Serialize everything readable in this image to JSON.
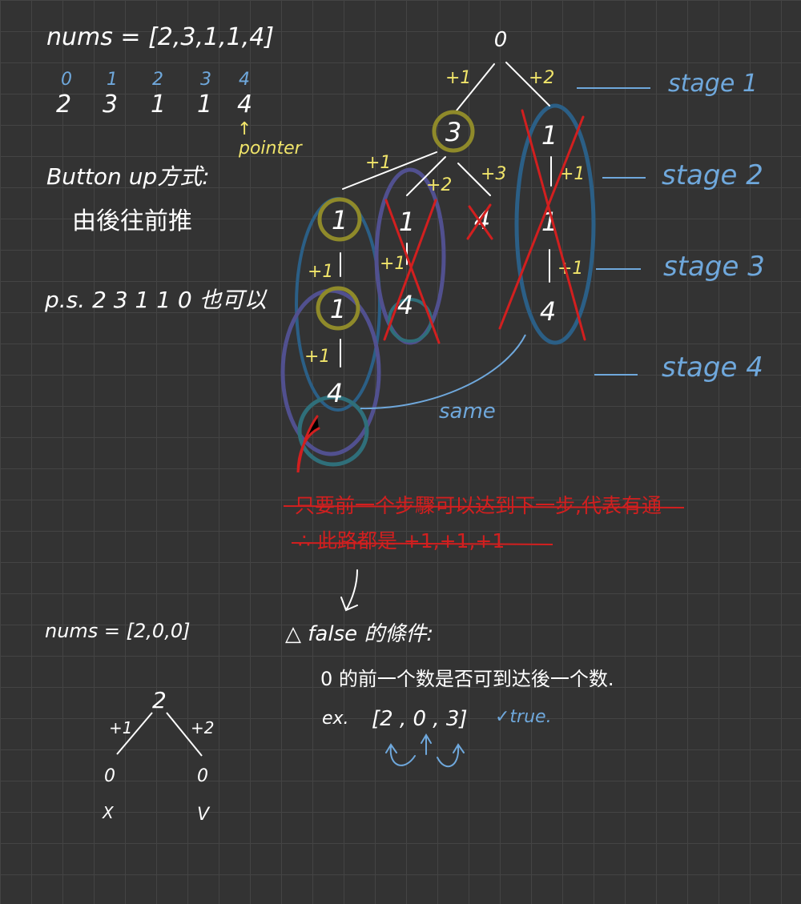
{
  "top": {
    "nums_label": "nums = [2,3,1,1,4]",
    "indices": [
      "0",
      "1",
      "2",
      "3",
      "4"
    ],
    "values": [
      "2",
      "3",
      "1",
      "1",
      "4"
    ],
    "pointer_arrow": "↑",
    "pointer_label": "pointer",
    "method_title": "Button up方式:",
    "method_desc": "由後往前推",
    "ps_note": "p.s. 2 3 1 1 0 也可以"
  },
  "tree": {
    "root": "0",
    "edge_plus1": "+1",
    "edge_plus2": "+2",
    "edge_plus3": "+3",
    "node_3": "3",
    "node_1": "1",
    "node_4": "4",
    "same_label": "same"
  },
  "stages": [
    "stage 1",
    "stage 2",
    "stage 3",
    "stage 4"
  ],
  "struck": {
    "line1": "只要前一个步驟可以达到下一步,代表有通",
    "line2": "∴ 此路都是 +1,+1,+1"
  },
  "bottom": {
    "nums_label": "nums = [2,0,0]",
    "root": "2",
    "left_edge": "+1",
    "right_edge": "+2",
    "left_leaf": "0",
    "right_leaf": "0",
    "left_mark": "X",
    "right_mark": "V",
    "false_title": "△ false 的條件:",
    "false_desc": "0 的前一个数是否可到达後一个数.",
    "example_prefix": "ex.",
    "example_array": "[2 , 0 , 3]",
    "example_result": "✓true."
  }
}
